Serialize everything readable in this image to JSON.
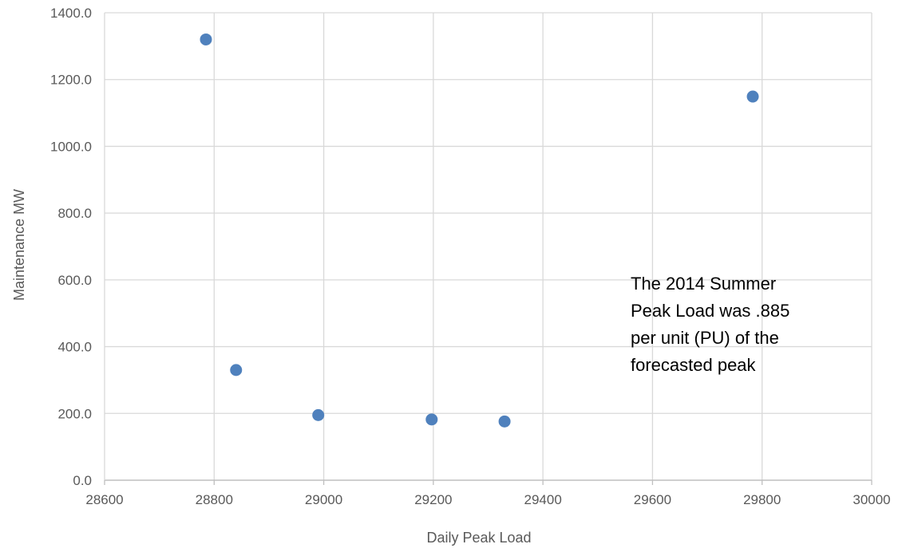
{
  "chart_data": {
    "type": "scatter",
    "title": "",
    "xlabel": "Daily Peak Load",
    "ylabel": "Maintenance MW",
    "xlim": [
      28600,
      30000
    ],
    "ylim": [
      0,
      1400
    ],
    "x_ticks": [
      "28600",
      "28800",
      "29000",
      "29200",
      "29400",
      "29600",
      "29800",
      "30000"
    ],
    "y_ticks": [
      "0.0",
      "200.0",
      "400.0",
      "600.0",
      "800.0",
      "1000.0",
      "1200.0",
      "1400.0"
    ],
    "grid": true,
    "legend": "none",
    "marker_color": "#4f81bd",
    "points": [
      {
        "x": 28785,
        "y": 1320
      },
      {
        "x": 28840,
        "y": 330
      },
      {
        "x": 28990,
        "y": 195
      },
      {
        "x": 29197,
        "y": 182
      },
      {
        "x": 29330,
        "y": 176
      },
      {
        "x": 29783,
        "y": 1149
      }
    ],
    "annotation_lines": [
      "The 2014 Summer",
      "Peak Load was .885",
      "per unit (PU) of the",
      "forecasted peak"
    ]
  }
}
